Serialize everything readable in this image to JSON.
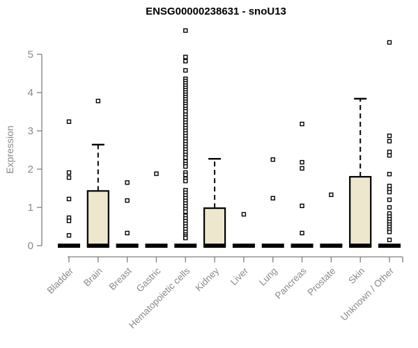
{
  "title": "ENSG00000238631 - snoU13",
  "colors": {
    "box_fill": "#ECE7CD",
    "box_stroke": "#000000",
    "outlier_fill": "#ffffff",
    "axis_line": "#7f7f7f",
    "tick_label": "#8a8a8a",
    "title_text": "#000000"
  },
  "chart_data": {
    "type": "boxplot",
    "title": "ENSG00000238631 - snoU13",
    "xlabel": "",
    "ylabel": "Expression",
    "ylim": [
      0,
      5
    ],
    "yticks": [
      "0",
      "1",
      "2",
      "3",
      "4",
      "5"
    ],
    "grid": false,
    "legend": null,
    "categories": [
      "Bladder",
      "Brain",
      "Breast",
      "Gastric",
      "Hematopoietic cells",
      "Kidney",
      "Liver",
      "Lung",
      "Pancreas",
      "Prostate",
      "Skin",
      "Unknown / Other"
    ],
    "series": [
      {
        "label": "Bladder",
        "q1": 0,
        "median": 0,
        "q3": 0,
        "whisker_low": 0,
        "whisker_high": 0,
        "outliers": [
          3.24,
          1.91,
          1.78,
          1.22,
          0.73,
          0.65,
          0.27
        ]
      },
      {
        "label": "Brain",
        "q1": 0,
        "median": 0,
        "q3": 1.43,
        "whisker_low": 0,
        "whisker_high": 2.64,
        "outliers": [
          3.78
        ]
      },
      {
        "label": "Breast",
        "q1": 0,
        "median": 0,
        "q3": 0,
        "whisker_low": 0,
        "whisker_high": 0,
        "outliers": [
          1.65,
          1.18,
          0.33
        ]
      },
      {
        "label": "Gastric",
        "q1": 0,
        "median": 0,
        "q3": 0,
        "whisker_low": 0,
        "whisker_high": 0,
        "outliers": [
          1.88
        ]
      },
      {
        "label": "Hematopoietic cells",
        "q1": 0,
        "median": 0,
        "q3": 0,
        "whisker_low": 0,
        "whisker_high": 0,
        "outliers": [
          5.62,
          4.93,
          4.82,
          4.58,
          4.36,
          4.3,
          4.24,
          4.18,
          4.12,
          4.06,
          4.0,
          3.94,
          3.88,
          3.82,
          3.76,
          3.7,
          3.64,
          3.57,
          3.51,
          3.42,
          3.35,
          3.28,
          3.21,
          3.14,
          3.07,
          3.0,
          2.93,
          2.86,
          2.79,
          2.72,
          2.65,
          2.58,
          2.51,
          2.44,
          2.37,
          2.3,
          2.2,
          2.13,
          2.07,
          1.91,
          1.85,
          1.75,
          1.69,
          1.45,
          1.38,
          1.31,
          1.24,
          1.17,
          1.1,
          1.03,
          0.96,
          0.89,
          0.78,
          0.71,
          0.64,
          0.57,
          0.5,
          0.43,
          0.36,
          0.29,
          0.24,
          0.2
        ]
      },
      {
        "label": "Kidney",
        "q1": 0,
        "median": 0,
        "q3": 0.98,
        "whisker_low": 0,
        "whisker_high": 2.27,
        "outliers": []
      },
      {
        "label": "Liver",
        "q1": 0,
        "median": 0,
        "q3": 0,
        "whisker_low": 0,
        "whisker_high": 0,
        "outliers": [
          0.82
        ]
      },
      {
        "label": "Lung",
        "q1": 0,
        "median": 0,
        "q3": 0,
        "whisker_low": 0,
        "whisker_high": 0,
        "outliers": [
          2.25,
          1.24
        ]
      },
      {
        "label": "Pancreas",
        "q1": 0,
        "median": 0,
        "q3": 0,
        "whisker_low": 0,
        "whisker_high": 0,
        "outliers": [
          3.18,
          2.18,
          2.02,
          1.04,
          0.33
        ]
      },
      {
        "label": "Prostate",
        "q1": 0,
        "median": 0,
        "q3": 0,
        "whisker_low": 0,
        "whisker_high": 0,
        "outliers": [
          1.33
        ]
      },
      {
        "label": "Skin",
        "q1": 0,
        "median": 0,
        "q3": 1.8,
        "whisker_low": 0,
        "whisker_high": 3.84,
        "outliers": []
      },
      {
        "label": "Unknown / Other",
        "q1": 0,
        "median": 0,
        "q3": 0,
        "whisker_low": 0,
        "whisker_high": 0,
        "outliers": [
          5.31,
          2.87,
          2.73,
          2.45,
          2.36,
          1.87,
          1.56,
          1.47,
          1.4,
          1.2,
          1.0,
          0.84,
          0.76,
          0.69,
          0.62,
          0.55,
          0.49,
          0.42,
          0.36,
          0.15
        ]
      }
    ]
  }
}
